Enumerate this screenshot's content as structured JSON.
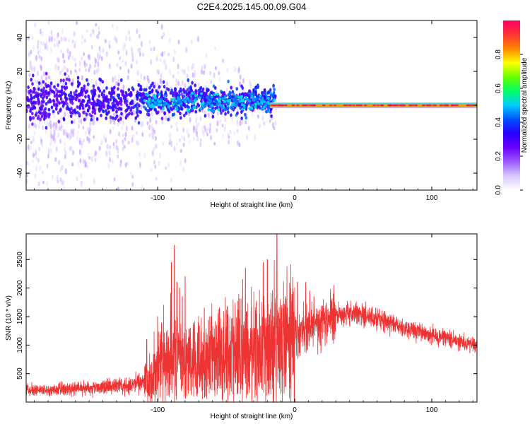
{
  "title": "C2E4.2025.145.00.09.G04",
  "colors": {
    "spectrogram_stops": [
      "#ffffff",
      "#d9c8ff",
      "#9b5cff",
      "#6a00ff",
      "#2a00ff",
      "#0050ff",
      "#00ccff",
      "#00ff66",
      "#66ff00",
      "#ffff00",
      "#ff8800",
      "#ff3333",
      "#ff0066"
    ],
    "snr_line": "#ee3333",
    "axis": "#000000"
  },
  "chart_data": [
    {
      "type": "heatmap",
      "name": "spectrogram",
      "xlabel": "Height of straight line (km)",
      "ylabel": "Frequency (Hz)",
      "xlim": [
        -196,
        133
      ],
      "ylim": [
        -50,
        50
      ],
      "xticks": [
        -100,
        0,
        100
      ],
      "xtick_labels": [
        "-100",
        "0",
        "100"
      ],
      "yticks": [
        -40,
        -20,
        0,
        20,
        40
      ],
      "ytick_labels": [
        "-40",
        "-20",
        "0",
        "20",
        "40"
      ],
      "coherent_start_km": -18,
      "carrier_frequency_hz": 0,
      "colorbar": {
        "label": "Normalized spectral amplitude",
        "range": [
          0,
          1
        ],
        "ticks": [
          0.0,
          0.2,
          0.4,
          0.6,
          0.8
        ],
        "tick_labels": [
          "0.0",
          "0.2",
          "0.4",
          "0.6",
          "0.8"
        ]
      }
    },
    {
      "type": "line",
      "name": "snr",
      "xlabel": "Height of straight line (km)",
      "ylabel": "SNR (10 * v/v)",
      "xlim": [
        -196,
        133
      ],
      "ylim": [
        0,
        2950
      ],
      "xticks": [
        -100,
        0,
        100
      ],
      "xtick_labels": [
        "-100",
        "0",
        "100"
      ],
      "yticks": [
        500,
        1000,
        1500,
        2000,
        2500
      ],
      "ytick_labels": [
        "500",
        "1000",
        "1500",
        "2000",
        "2500"
      ],
      "envelope_km": [
        -196,
        -170,
        -140,
        -120,
        -105,
        -100,
        -90,
        -80,
        -60,
        -40,
        -20,
        -10,
        0,
        10,
        20,
        30,
        40,
        50,
        60,
        70,
        80,
        90,
        100,
        110,
        120,
        133
      ],
      "envelope_snr": [
        200,
        230,
        260,
        300,
        420,
        700,
        800,
        700,
        820,
        950,
        1050,
        1150,
        1200,
        1320,
        1420,
        1520,
        1560,
        1520,
        1460,
        1380,
        1300,
        1240,
        1180,
        1120,
        1060,
        1000
      ],
      "spikes_km": [
        -108,
        -100,
        -90,
        -88,
        -86,
        -84,
        -82,
        -80,
        -66,
        -61,
        -55,
        -38,
        -36,
        -23,
        -20,
        -13,
        -7,
        2,
        8,
        11,
        14
      ],
      "spikes_snr": [
        1100,
        1500,
        2450,
        2750,
        2100,
        2000,
        1850,
        2200,
        1650,
        1500,
        1650,
        2150,
        2350,
        2450,
        2500,
        2950,
        1850,
        2100,
        2100,
        1950,
        1850
      ]
    }
  ]
}
